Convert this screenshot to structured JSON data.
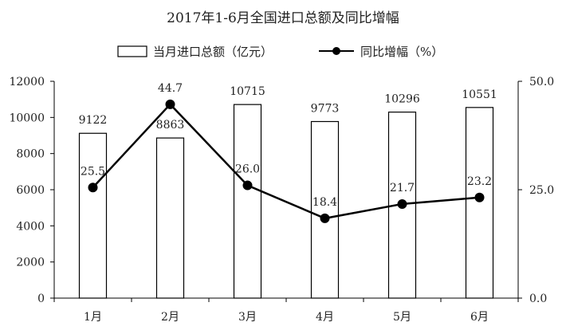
{
  "chart_data": {
    "type": "bar",
    "title": "2017年1-6月全国进口总额及同比增幅",
    "categories": [
      "1月",
      "2月",
      "3月",
      "4月",
      "5月",
      "6月"
    ],
    "series": [
      {
        "name": "当月进口总额（亿元）",
        "type": "bar",
        "axis": "left",
        "values": [
          9122,
          8863,
          10715,
          9773,
          10296,
          10551
        ],
        "labels": [
          "9122",
          "8863",
          "10715",
          "9773",
          "10296",
          "10551"
        ]
      },
      {
        "name": "同比增幅（%）",
        "type": "line",
        "axis": "right",
        "values": [
          25.5,
          44.7,
          26.0,
          18.4,
          21.7,
          23.2
        ],
        "labels": [
          "25.5",
          "44.7",
          "26.0",
          "18.4",
          "21.7",
          "23.2"
        ]
      }
    ],
    "y_left": {
      "range": [
        0,
        12000
      ],
      "ticks": [
        0,
        2000,
        4000,
        6000,
        8000,
        10000,
        12000
      ],
      "tick_labels": [
        "0",
        "2000",
        "4000",
        "6000",
        "8000",
        "10000",
        "12000"
      ]
    },
    "y_right": {
      "range": [
        0,
        50
      ],
      "ticks": [
        0,
        25,
        50
      ],
      "tick_labels": [
        "0.0",
        "25.0",
        "50.0"
      ]
    },
    "grid": false,
    "legend": "top-center",
    "colors": {
      "bar_fill": "#ffffff",
      "bar_stroke": "#000000",
      "line": "#000000",
      "marker": "#000000"
    }
  }
}
